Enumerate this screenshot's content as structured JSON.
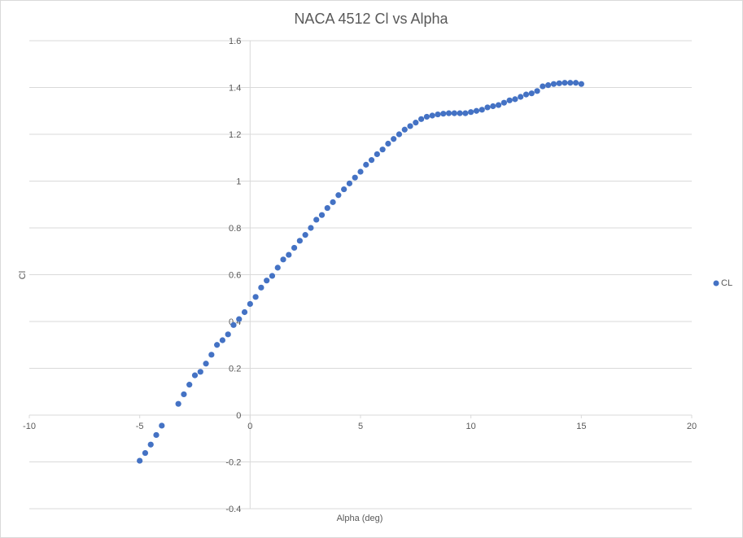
{
  "chart_data": {
    "type": "scatter",
    "title": "NACA 4512 Cl vs Alpha",
    "xlabel": "Alpha (deg)",
    "ylabel": "Cl",
    "xlim": [
      -10,
      20
    ],
    "ylim": [
      -0.4,
      1.6
    ],
    "xticks": [
      -10,
      -5,
      0,
      5,
      10,
      15,
      20
    ],
    "yticks": [
      -0.4,
      -0.2,
      0,
      0.2,
      0.4,
      0.6,
      0.8,
      1,
      1.2,
      1.4,
      1.6
    ],
    "xtick_labels": [
      "-10",
      "-5",
      "0",
      "5",
      "10",
      "15",
      "20"
    ],
    "ytick_labels": [
      "-0.4",
      "-0.2",
      "0",
      "0.2",
      "0.4",
      "0.6",
      "0.8",
      "1",
      "1.2",
      "1.4",
      "1.6"
    ],
    "grid": true,
    "legend_position": "right",
    "series": [
      {
        "name": "CL",
        "color": "#4472c4",
        "x": [
          -5.0,
          -4.75,
          -4.5,
          -4.25,
          -4.0,
          -3.25,
          -3.0,
          -2.75,
          -2.5,
          -2.25,
          -2.0,
          -1.75,
          -1.5,
          -1.25,
          -1.0,
          -0.75,
          -0.5,
          -0.25,
          0.0,
          0.25,
          0.5,
          0.75,
          1.0,
          1.25,
          1.5,
          1.75,
          2.0,
          2.25,
          2.5,
          2.75,
          3.0,
          3.25,
          3.5,
          3.75,
          4.0,
          4.25,
          4.5,
          4.75,
          5.0,
          5.25,
          5.5,
          5.75,
          6.0,
          6.25,
          6.5,
          6.75,
          7.0,
          7.25,
          7.5,
          7.75,
          8.0,
          8.25,
          8.5,
          8.75,
          9.0,
          9.25,
          9.5,
          9.75,
          10.0,
          10.25,
          10.5,
          10.75,
          11.0,
          11.25,
          11.5,
          11.75,
          12.0,
          12.25,
          12.5,
          12.75,
          13.0,
          13.25,
          13.5,
          13.75,
          14.0,
          14.25,
          14.5,
          14.75,
          15.0
        ],
        "y": [
          -0.195,
          -0.162,
          -0.126,
          -0.085,
          -0.045,
          0.048,
          0.089,
          0.13,
          0.17,
          0.185,
          0.22,
          0.258,
          0.3,
          0.32,
          0.345,
          0.385,
          0.41,
          0.44,
          0.475,
          0.505,
          0.545,
          0.575,
          0.595,
          0.63,
          0.665,
          0.685,
          0.715,
          0.745,
          0.77,
          0.8,
          0.835,
          0.855,
          0.885,
          0.91,
          0.94,
          0.965,
          0.99,
          1.015,
          1.04,
          1.07,
          1.09,
          1.115,
          1.135,
          1.16,
          1.18,
          1.2,
          1.22,
          1.235,
          1.25,
          1.265,
          1.275,
          1.28,
          1.285,
          1.288,
          1.29,
          1.29,
          1.29,
          1.29,
          1.295,
          1.3,
          1.305,
          1.315,
          1.32,
          1.325,
          1.335,
          1.345,
          1.35,
          1.36,
          1.37,
          1.375,
          1.385,
          1.405,
          1.41,
          1.415,
          1.418,
          1.42,
          1.42,
          1.42,
          1.415
        ]
      }
    ]
  }
}
